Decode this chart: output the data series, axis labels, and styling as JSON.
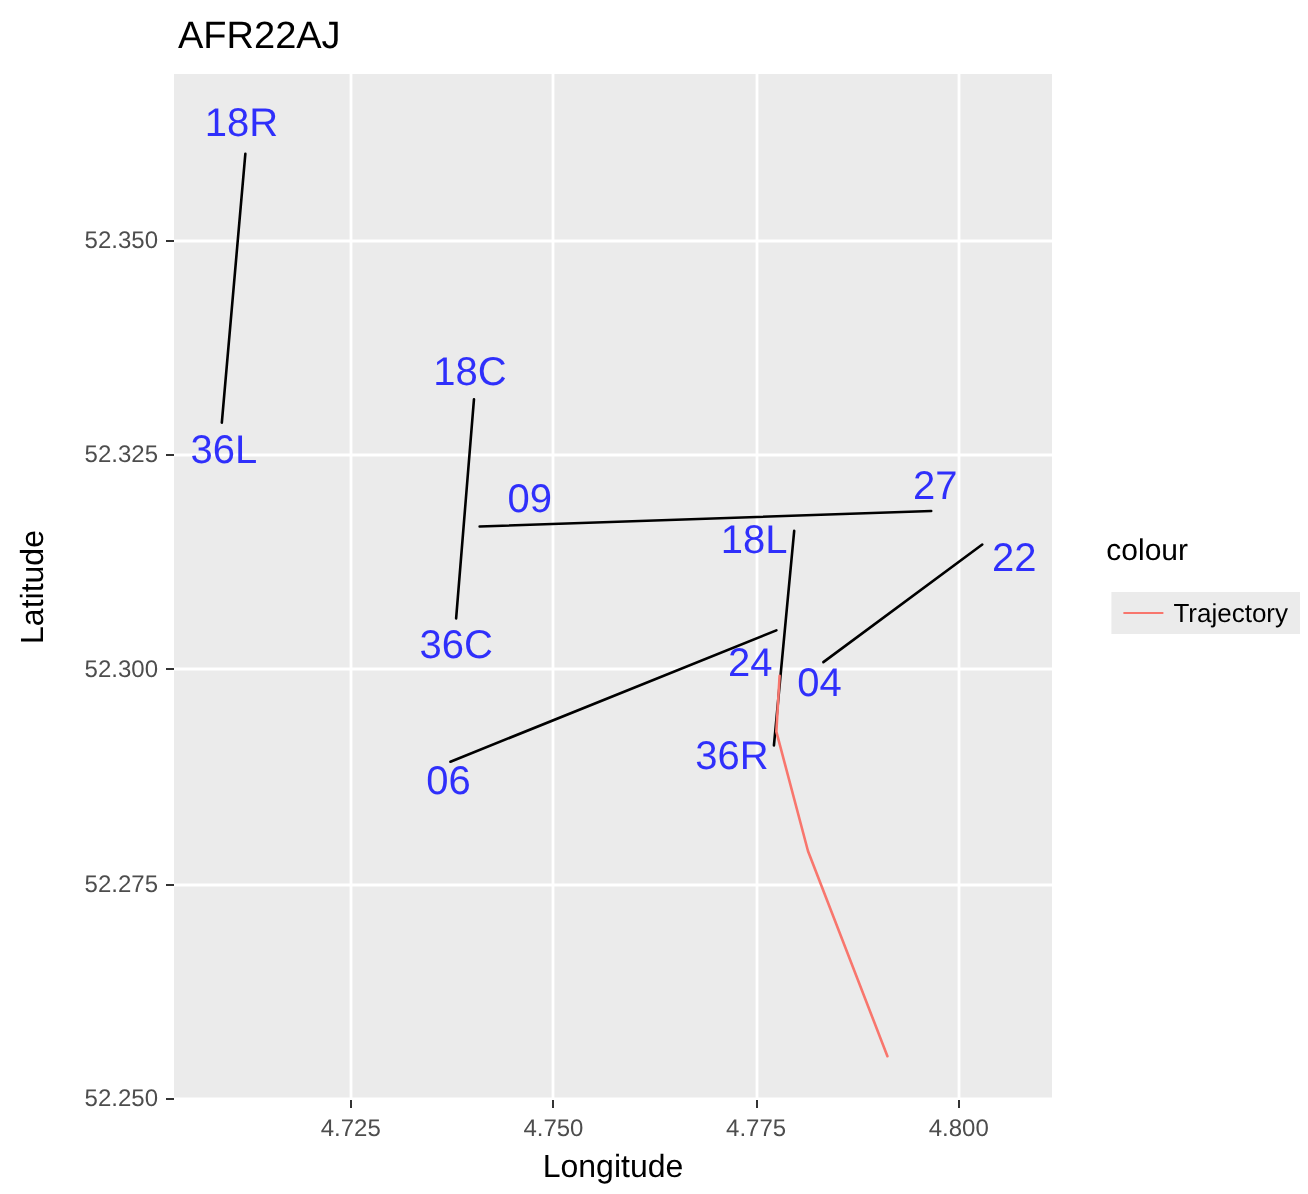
{
  "chart_data": {
    "type": "line",
    "title": "AFR22AJ",
    "xlabel": "Longitude",
    "ylabel": "Latitude",
    "legend_title": "colour",
    "series": [
      {
        "color": "#000000",
        "x": [
          4.712,
          4.7091
        ],
        "values": [
          52.36,
          52.3287
        ]
      },
      {
        "color": "#000000",
        "x": [
          4.7402,
          4.738
        ],
        "values": [
          52.3314,
          52.3059
        ]
      },
      {
        "color": "#000000",
        "x": [
          4.7409,
          4.7966
        ],
        "values": [
          52.3166,
          52.3184
        ]
      },
      {
        "color": "#000000",
        "x": [
          4.7797,
          4.7772
        ],
        "values": [
          52.3161,
          52.2911
        ]
      },
      {
        "color": "#000000",
        "x": [
          4.7373,
          4.7775
        ],
        "values": [
          52.2892,
          52.3045
        ]
      },
      {
        "color": "#000000",
        "x": [
          4.7833,
          4.8029
        ],
        "values": [
          52.3008,
          52.3145
        ]
      },
      {
        "name": "Trajectory",
        "color": "#f8766d",
        "x": [
          4.7779,
          4.7775,
          4.7814,
          4.7912
        ],
        "values": [
          52.2992,
          52.2927,
          52.2788,
          52.2549
        ]
      }
    ],
    "annotations": [
      {
        "text": "18R",
        "x": 4.712,
        "y": 52.36
      },
      {
        "text": "36L",
        "x": 4.7091,
        "y": 52.3287
      },
      {
        "text": "18C",
        "x": 4.7402,
        "y": 52.3314
      },
      {
        "text": "36C",
        "x": 4.738,
        "y": 52.3059
      },
      {
        "text": "09",
        "x": 4.7409,
        "y": 52.3166
      },
      {
        "text": "27",
        "x": 4.7966,
        "y": 52.3184
      },
      {
        "text": "18L",
        "x": 4.7797,
        "y": 52.3161
      },
      {
        "text": "24",
        "x": 4.7775,
        "y": 52.3045
      },
      {
        "text": "04",
        "x": 4.7833,
        "y": 52.3008
      },
      {
        "text": "22",
        "x": 4.8029,
        "y": 52.3145
      },
      {
        "text": "36R",
        "x": 4.7772,
        "y": 52.2911
      },
      {
        "text": "06",
        "x": 4.7373,
        "y": 52.2892
      }
    ],
    "xlim": [
      4.7032,
      4.8115
    ],
    "ylim": [
      52.2498,
      52.3693
    ],
    "xticks": [
      4.725,
      {
        "value": 4.75,
        "label": "4.750"
      },
      4.775,
      {
        "value": 4.8,
        "label": "4.800"
      }
    ],
    "yticks": [
      {
        "value": 52.25,
        "label": "52.250"
      },
      52.275,
      {
        "value": 52.3,
        "label": "52.300"
      },
      52.325,
      {
        "value": 52.35,
        "label": "52.350"
      }
    ],
    "grid": true,
    "legend": "right",
    "marker": "none",
    "line_style": "solid"
  }
}
